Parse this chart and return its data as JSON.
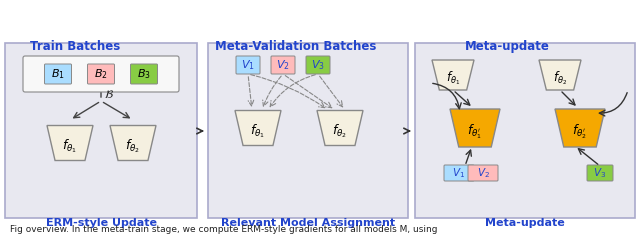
{
  "fig_width": 6.4,
  "fig_height": 2.38,
  "dpi": 100,
  "bg_color": "#f0f0f0",
  "panel_bg": "#e8e8f0",
  "panel_border": "#aaaacc",
  "title_color": "#2244cc",
  "label_color": "#2244cc",
  "funnel_fill": "#f5f0e0",
  "funnel_fill_orange": "#f5a800",
  "funnel_border": "#888888",
  "b1_color": "#aaddff",
  "b2_color": "#ffbbbb",
  "b3_color": "#88cc44",
  "v1_color": "#aaddff",
  "v2_color": "#ffbbbb",
  "v3_color": "#88cc44",
  "arrow_color": "#333333",
  "dashed_color": "#888888",
  "bottom_text_color": "#2244cc",
  "bottom_text": [
    "ERM-style Update",
    "Relevant Model Assignment",
    "Meta-update"
  ],
  "panel_titles": [
    "Train Batches",
    "Meta-Validation Batches",
    "Meta-update"
  ],
  "caption_text": "Fig overview. In the meta-train stage, we compute ERM-style gradients for all models M, using"
}
